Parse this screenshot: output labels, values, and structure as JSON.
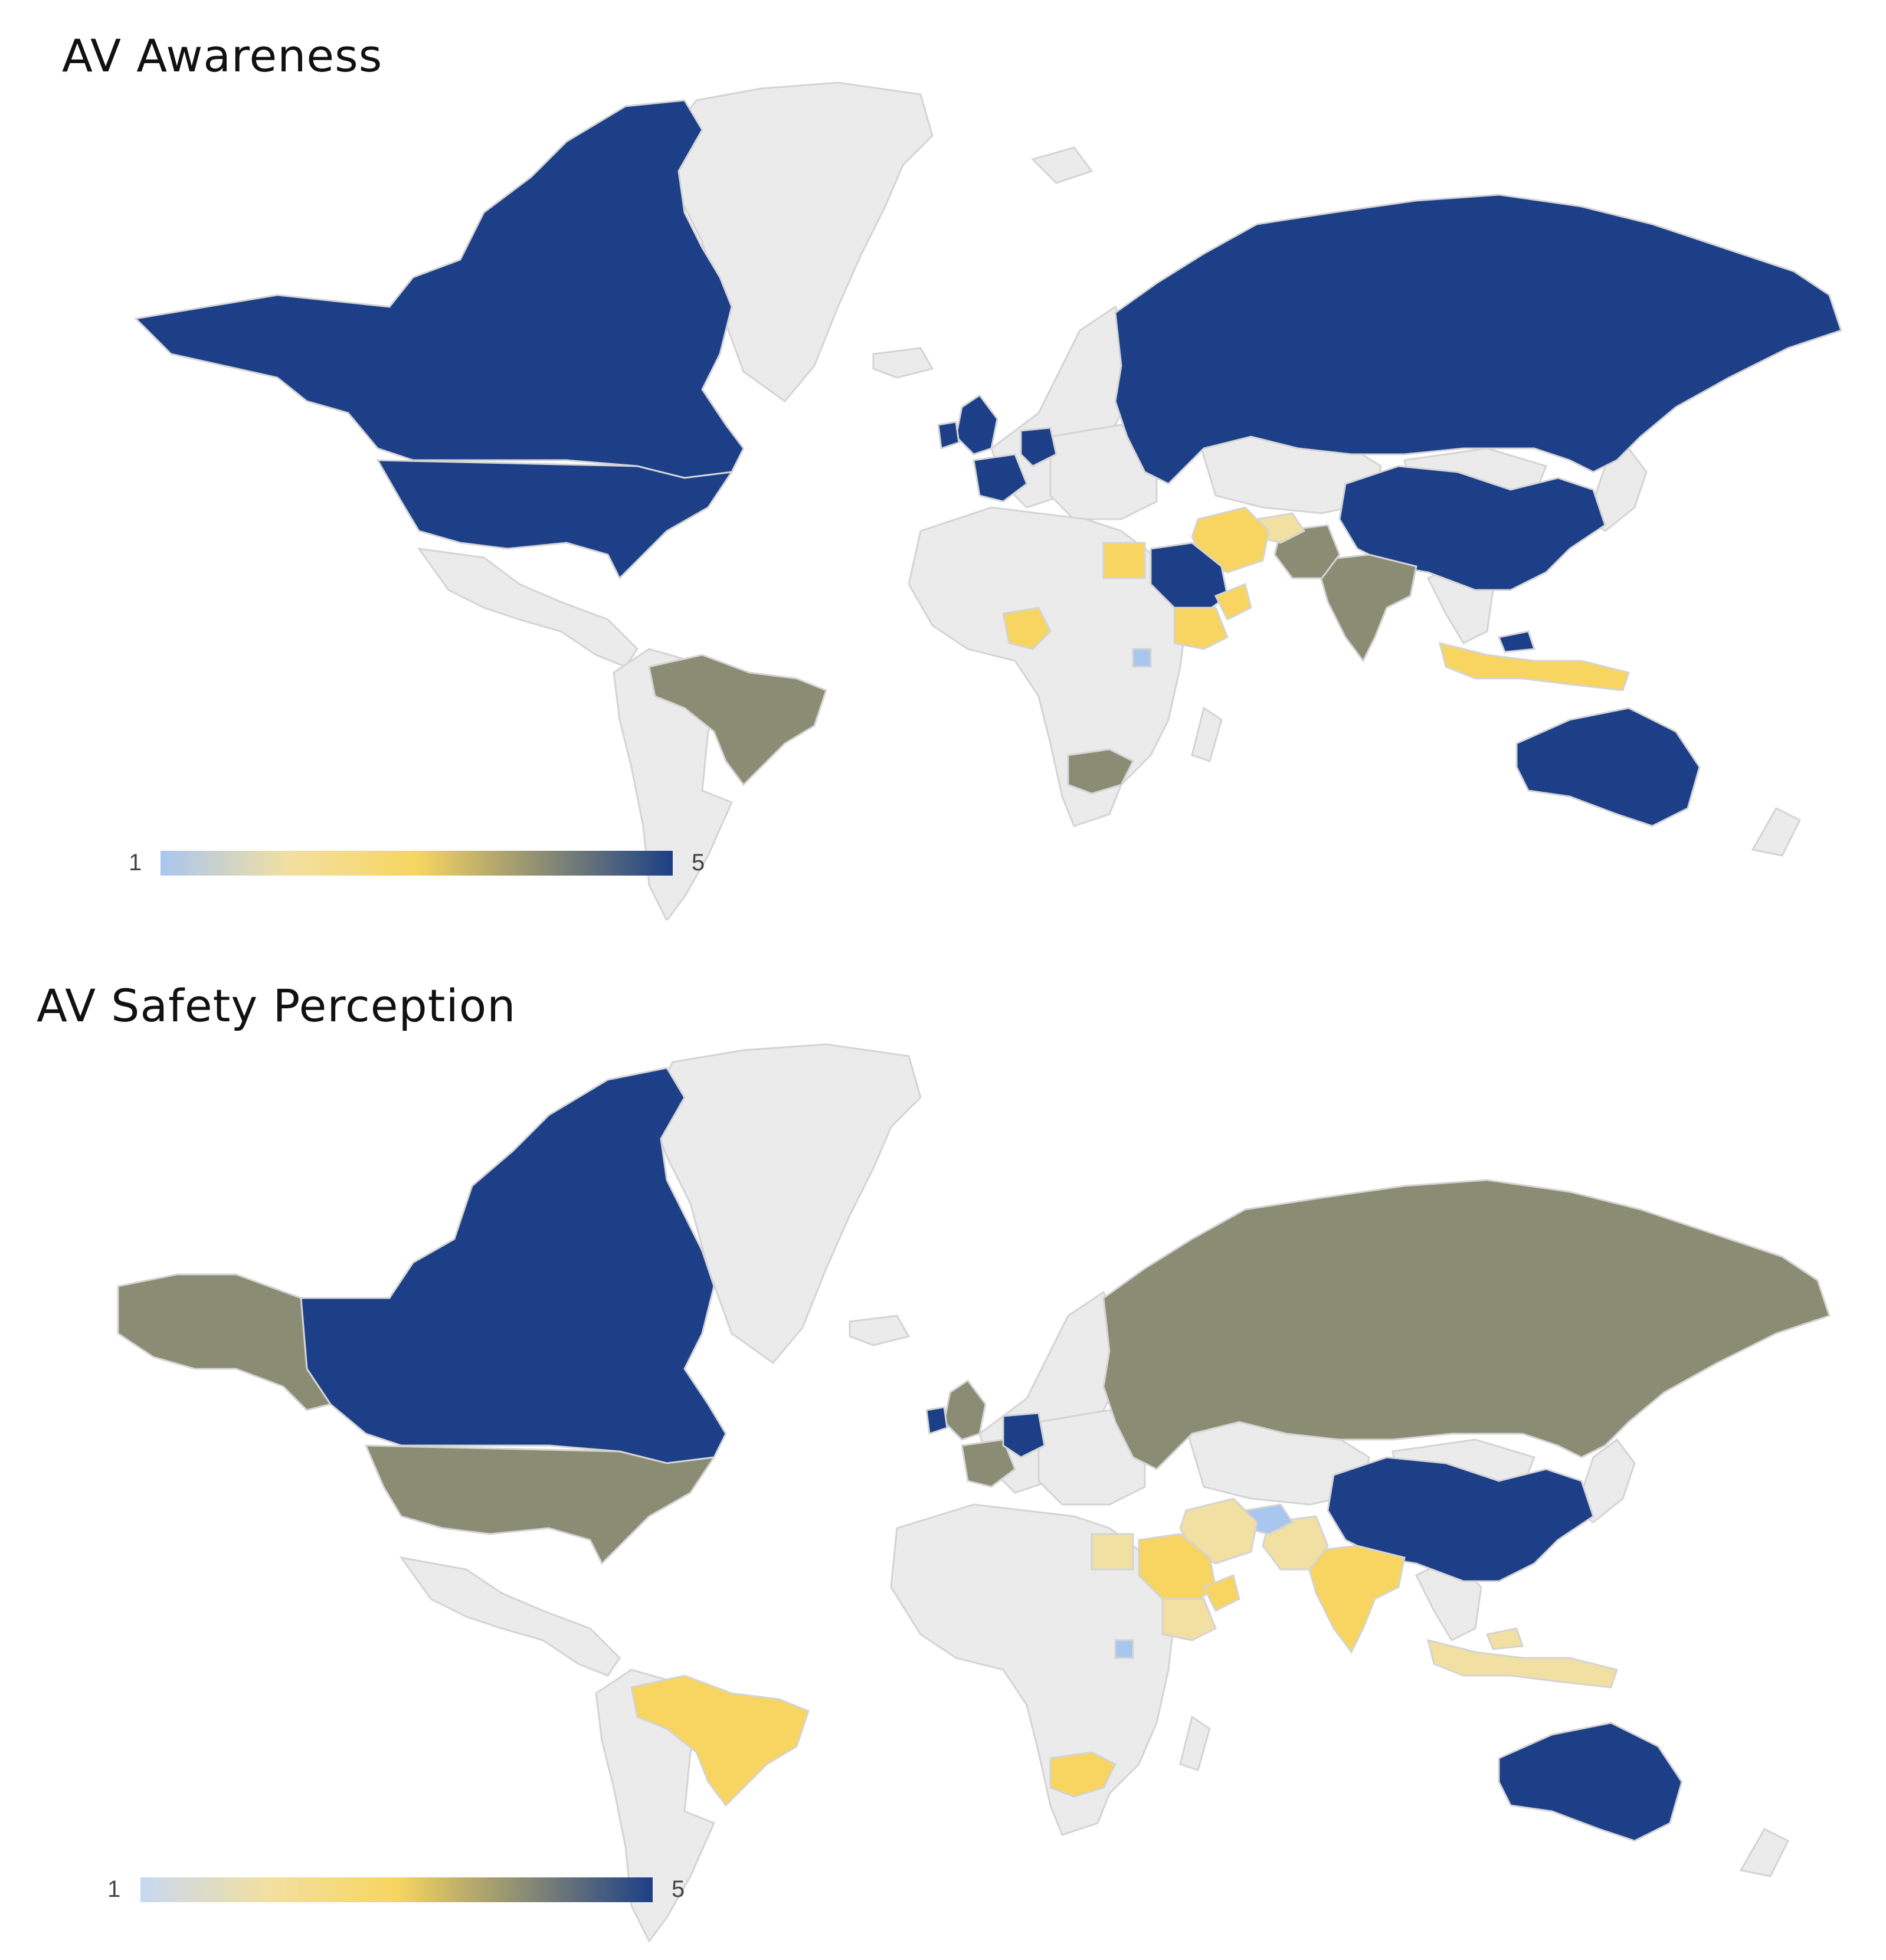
{
  "colors": {
    "land_default": "#ebebeb",
    "border": "#d4d4d4",
    "scale": [
      "#a9c6ef",
      "#f2dfa2",
      "#f7d560",
      "#8b8c74",
      "#1c3f87"
    ]
  },
  "maps": [
    {
      "title": "AV Awareness",
      "legend": {
        "min": "1",
        "max": "5"
      },
      "countries": [
        {
          "name": "Canada",
          "value": 5
        },
        {
          "name": "United States",
          "value": 5
        },
        {
          "name": "Russia",
          "value": 5
        },
        {
          "name": "China",
          "value": 5
        },
        {
          "name": "Australia",
          "value": 5
        },
        {
          "name": "United Kingdom",
          "value": 5
        },
        {
          "name": "Ireland",
          "value": 5
        },
        {
          "name": "France",
          "value": 5
        },
        {
          "name": "Germany",
          "value": 5
        },
        {
          "name": "Saudi Arabia",
          "value": 5
        },
        {
          "name": "Malaysia",
          "value": 5
        },
        {
          "name": "Brazil",
          "value": 4
        },
        {
          "name": "India",
          "value": 4
        },
        {
          "name": "Pakistan",
          "value": 4
        },
        {
          "name": "South Africa",
          "value": 4
        },
        {
          "name": "Indonesia",
          "value": 3
        },
        {
          "name": "Egypt",
          "value": 3
        },
        {
          "name": "Nigeria",
          "value": 3
        },
        {
          "name": "Ethiopia",
          "value": 3
        },
        {
          "name": "Iran",
          "value": 3
        },
        {
          "name": "Oman",
          "value": 3
        },
        {
          "name": "Afghanistan",
          "value": 2
        },
        {
          "name": "Uganda",
          "value": 1
        }
      ]
    },
    {
      "title": "AV Safety Perception",
      "legend": {
        "min": "1",
        "max": "5"
      },
      "countries": [
        {
          "name": "Canada",
          "value": 5
        },
        {
          "name": "China",
          "value": 5
        },
        {
          "name": "Australia",
          "value": 5
        },
        {
          "name": "Germany",
          "value": 5
        },
        {
          "name": "Ireland",
          "value": 5
        },
        {
          "name": "United States",
          "value": 4
        },
        {
          "name": "Alaska",
          "value": 4
        },
        {
          "name": "Russia",
          "value": 4
        },
        {
          "name": "United Kingdom",
          "value": 4
        },
        {
          "name": "France",
          "value": 4
        },
        {
          "name": "Brazil",
          "value": 3
        },
        {
          "name": "India",
          "value": 3
        },
        {
          "name": "Saudi Arabia",
          "value": 3
        },
        {
          "name": "Oman",
          "value": 3
        },
        {
          "name": "South Africa",
          "value": 3
        },
        {
          "name": "Iran",
          "value": 2
        },
        {
          "name": "Pakistan",
          "value": 2
        },
        {
          "name": "Egypt",
          "value": 2
        },
        {
          "name": "Ethiopia",
          "value": 2
        },
        {
          "name": "Indonesia",
          "value": 2
        },
        {
          "name": "Malaysia",
          "value": 2
        },
        {
          "name": "Afghanistan",
          "value": 1
        },
        {
          "name": "Uganda",
          "value": 1
        }
      ]
    }
  ]
}
